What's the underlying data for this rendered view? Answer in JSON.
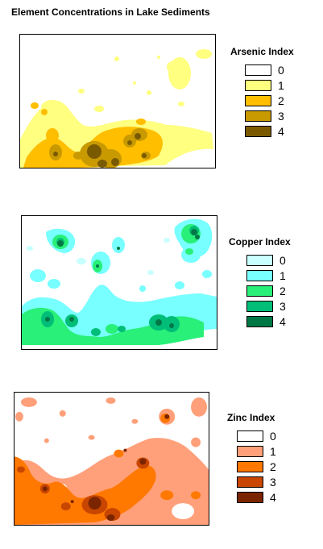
{
  "page": {
    "title": "Element Concentrations in Lake Sediments"
  },
  "maps": [
    {
      "id": "arsenic",
      "legend_title": "Arsenic Index",
      "classes": [
        {
          "label": "0",
          "color": "#ffffff"
        },
        {
          "label": "1",
          "color": "#ffff80"
        },
        {
          "label": "2",
          "color": "#ffbe00"
        },
        {
          "label": "3",
          "color": "#c89a00"
        },
        {
          "label": "4",
          "color": "#7a5a00"
        }
      ]
    },
    {
      "id": "copper",
      "legend_title": "Copper Index",
      "classes": [
        {
          "label": "0",
          "color": "#c8ffff"
        },
        {
          "label": "1",
          "color": "#78ffff"
        },
        {
          "label": "2",
          "color": "#28f078"
        },
        {
          "label": "3",
          "color": "#00be78"
        },
        {
          "label": "4",
          "color": "#007846"
        }
      ]
    },
    {
      "id": "zinc",
      "legend_title": "Zinc Index",
      "classes": [
        {
          "label": "0",
          "color": "#ffffff"
        },
        {
          "label": "1",
          "color": "#ffa07a"
        },
        {
          "label": "2",
          "color": "#ff7800"
        },
        {
          "label": "3",
          "color": "#c84600"
        },
        {
          "label": "4",
          "color": "#7a2400"
        }
      ]
    }
  ]
}
